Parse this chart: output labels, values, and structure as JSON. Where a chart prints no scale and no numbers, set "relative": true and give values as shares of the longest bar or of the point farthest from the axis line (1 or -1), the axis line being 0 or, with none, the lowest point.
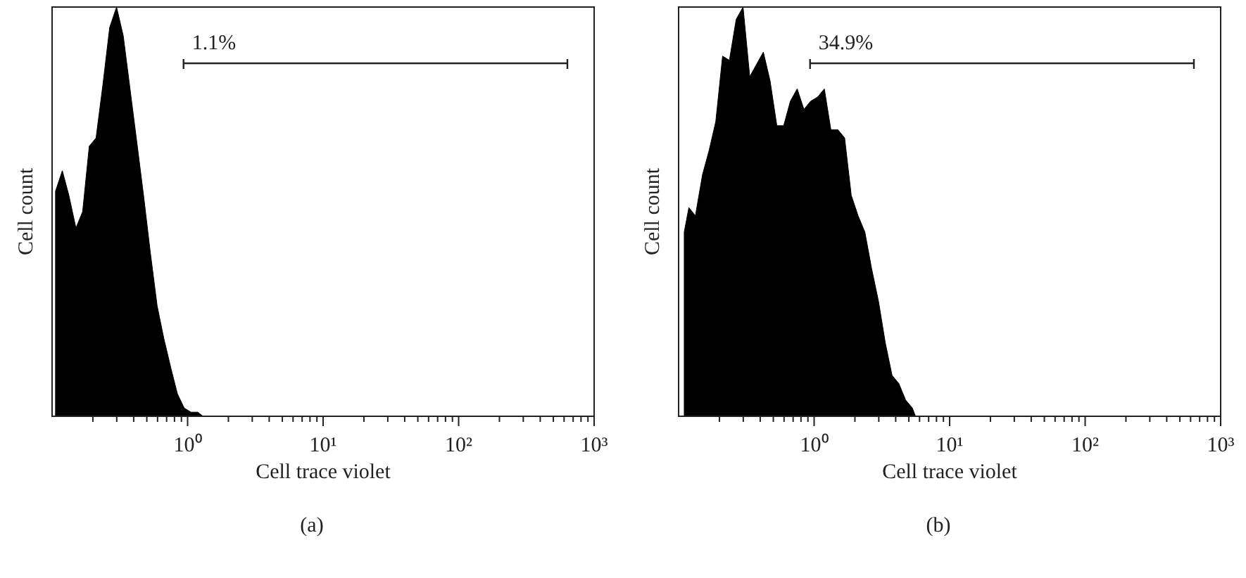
{
  "chart_data": [
    {
      "type": "area",
      "title": "(a)",
      "xlabel": "Cell trace violet",
      "ylabel": "Cell count",
      "relative": true,
      "log": "x",
      "color": "#000000",
      "xlim": [
        0.1,
        1000
      ],
      "xticks": [
        {
          "value": 0.2,
          "label": null
        },
        {
          "value": 0.3,
          "label": null
        },
        {
          "value": 0.4,
          "label": null
        },
        {
          "value": 0.5,
          "label": null
        },
        {
          "value": 0.6,
          "label": null
        },
        {
          "value": 0.7,
          "label": null
        },
        {
          "value": 0.8,
          "label": null
        },
        {
          "value": 0.9,
          "label": null
        },
        {
          "value": 1,
          "label": "10⁰"
        },
        {
          "value": 2,
          "label": null
        },
        {
          "value": 3,
          "label": null
        },
        {
          "value": 4,
          "label": null
        },
        {
          "value": 5,
          "label": null
        },
        {
          "value": 6,
          "label": null
        },
        {
          "value": 7,
          "label": null
        },
        {
          "value": 8,
          "label": null
        },
        {
          "value": 9,
          "label": null
        },
        {
          "value": 10,
          "label": "10¹"
        },
        {
          "value": 20,
          "label": null
        },
        {
          "value": 30,
          "label": null
        },
        {
          "value": 40,
          "label": null
        },
        {
          "value": 50,
          "label": null
        },
        {
          "value": 60,
          "label": null
        },
        {
          "value": 70,
          "label": null
        },
        {
          "value": 80,
          "label": null
        },
        {
          "value": 90,
          "label": null
        },
        {
          "value": 100,
          "label": "10²"
        },
        {
          "value": 200,
          "label": null
        },
        {
          "value": 300,
          "label": null
        },
        {
          "value": 400,
          "label": null
        },
        {
          "value": 500,
          "label": null
        },
        {
          "value": 600,
          "label": null
        },
        {
          "value": 700,
          "label": null
        },
        {
          "value": 800,
          "label": null
        },
        {
          "value": 900,
          "label": null
        },
        {
          "value": 1000,
          "label": "10³"
        }
      ],
      "x": [
        0.106,
        0.119,
        0.133,
        0.15,
        0.168,
        0.188,
        0.211,
        0.237,
        0.266,
        0.299,
        0.335,
        0.376,
        0.422,
        0.473,
        0.531,
        0.596,
        0.668,
        0.75,
        0.841,
        0.944,
        1.06,
        1.19,
        1.3
      ],
      "values": [
        0.55,
        0.6,
        0.54,
        0.46,
        0.5,
        0.66,
        0.68,
        0.81,
        0.95,
        1,
        0.93,
        0.8,
        0.67,
        0.54,
        0.4,
        0.27,
        0.19,
        0.12,
        0.055,
        0.02,
        0.01,
        0.01,
        0
      ],
      "annotations": [
        "1.1%"
      ]
    },
    {
      "type": "area",
      "title": "(b)",
      "xlabel": "Cell trace violet",
      "ylabel": "Cell count",
      "relative": true,
      "log": "x",
      "color": "#000000",
      "xlim": [
        0.1,
        1000
      ],
      "xticks": [
        {
          "value": 0.2,
          "label": null
        },
        {
          "value": 0.3,
          "label": null
        },
        {
          "value": 0.4,
          "label": null
        },
        {
          "value": 0.5,
          "label": null
        },
        {
          "value": 0.6,
          "label": null
        },
        {
          "value": 0.7,
          "label": null
        },
        {
          "value": 0.8,
          "label": null
        },
        {
          "value": 0.9,
          "label": null
        },
        {
          "value": 1,
          "label": "10⁰"
        },
        {
          "value": 2,
          "label": null
        },
        {
          "value": 3,
          "label": null
        },
        {
          "value": 4,
          "label": null
        },
        {
          "value": 5,
          "label": null
        },
        {
          "value": 6,
          "label": null
        },
        {
          "value": 7,
          "label": null
        },
        {
          "value": 8,
          "label": null
        },
        {
          "value": 9,
          "label": null
        },
        {
          "value": 10,
          "label": "10¹"
        },
        {
          "value": 20,
          "label": null
        },
        {
          "value": 30,
          "label": null
        },
        {
          "value": 40,
          "label": null
        },
        {
          "value": 50,
          "label": null
        },
        {
          "value": 60,
          "label": null
        },
        {
          "value": 70,
          "label": null
        },
        {
          "value": 80,
          "label": null
        },
        {
          "value": 90,
          "label": null
        },
        {
          "value": 100,
          "label": "10²"
        },
        {
          "value": 200,
          "label": null
        },
        {
          "value": 300,
          "label": null
        },
        {
          "value": 400,
          "label": null
        },
        {
          "value": 500,
          "label": null
        },
        {
          "value": 600,
          "label": null
        },
        {
          "value": 700,
          "label": null
        },
        {
          "value": 800,
          "label": null
        },
        {
          "value": 900,
          "label": null
        },
        {
          "value": 1000,
          "label": "10³"
        }
      ],
      "x": [
        0.11,
        0.119,
        0.133,
        0.15,
        0.168,
        0.188,
        0.211,
        0.237,
        0.266,
        0.299,
        0.335,
        0.376,
        0.422,
        0.473,
        0.531,
        0.596,
        0.668,
        0.75,
        0.841,
        0.944,
        1.06,
        1.19,
        1.33,
        1.5,
        1.68,
        1.88,
        2.11,
        2.37,
        2.66,
        2.99,
        3.35,
        3.76,
        4.22,
        4.73,
        5.31,
        5.6
      ],
      "values": [
        0.45,
        0.51,
        0.49,
        0.59,
        0.65,
        0.72,
        0.88,
        0.87,
        0.97,
        1,
        0.83,
        0.86,
        0.89,
        0.82,
        0.71,
        0.71,
        0.77,
        0.8,
        0.75,
        0.77,
        0.78,
        0.8,
        0.7,
        0.7,
        0.68,
        0.54,
        0.49,
        0.45,
        0.36,
        0.28,
        0.18,
        0.1,
        0.08,
        0.04,
        0.02,
        0
      ],
      "annotations": [
        "34.9%"
      ]
    }
  ]
}
